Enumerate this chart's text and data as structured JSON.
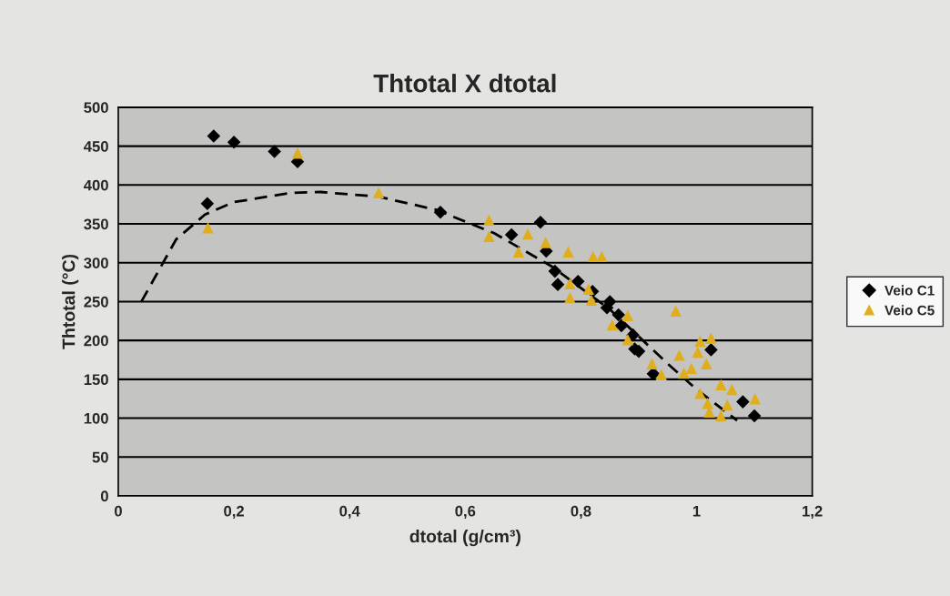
{
  "chart_data": {
    "type": "scatter",
    "title": "Thtotal X dtotal",
    "xlabel": "dtotal (g/cm³)",
    "ylabel": "Thtotal (°C)",
    "xlim": [
      0,
      1.2
    ],
    "xticks": [
      0,
      {
        "value": 0.2,
        "label": "0,2"
      },
      {
        "value": 0.4,
        "label": "0,4"
      },
      {
        "value": 0.6,
        "label": "0,6"
      },
      {
        "value": 0.8,
        "label": "0,8"
      },
      1,
      {
        "value": 1.2,
        "label": "1,2"
      }
    ],
    "ylim": [
      0,
      500
    ],
    "yticks": [
      0,
      50,
      100,
      150,
      200,
      250,
      300,
      350,
      400,
      450,
      500
    ],
    "grid": "y",
    "legend": "right",
    "series": [
      {
        "name": "Veio C1",
        "color": "#000000",
        "marker": "diamond",
        "x": [
          0.165,
          0.2,
          0.27,
          0.31,
          0.154,
          0.557,
          0.68,
          0.73,
          0.74,
          0.755,
          0.76,
          0.795,
          0.82,
          0.845,
          0.85,
          0.865,
          0.87,
          0.89,
          0.893,
          0.9,
          0.925,
          1.025,
          1.08,
          1.1
        ],
        "values": [
          463,
          455,
          443,
          430,
          376,
          365,
          336,
          352,
          315,
          289,
          272,
          276,
          263,
          242,
          250,
          233,
          219,
          207,
          189,
          186,
          157,
          188,
          121,
          103
        ]
      },
      {
        "name": "Veio C5",
        "color": "#e0ae1c",
        "marker": "triangle",
        "x": [
          0.155,
          0.31,
          0.45,
          0.641,
          0.641,
          0.708,
          0.692,
          0.739,
          0.778,
          0.821,
          0.836,
          0.781,
          0.813,
          0.781,
          0.818,
          0.854,
          0.881,
          0.881,
          0.964,
          1.006,
          1.025,
          0.923,
          0.939,
          0.97,
          0.978,
          0.991,
          1.002,
          1.017,
          1.042,
          1.061,
          1.006,
          1.019,
          1.022,
          1.042,
          1.053,
          1.101
        ],
        "values": [
          345,
          441,
          390,
          355,
          334,
          337,
          314,
          326,
          314,
          308,
          308,
          273,
          266,
          255,
          252,
          220,
          232,
          201,
          238,
          199,
          203,
          170,
          156,
          181,
          158,
          164,
          185,
          170,
          143,
          137,
          132,
          119,
          108,
          103,
          117,
          125
        ]
      },
      {
        "type": "line",
        "color": "#000000",
        "line_style": "dashed",
        "marker": "none",
        "x": [
          0.04,
          0.1,
          0.15,
          0.2,
          0.3,
          0.35,
          0.45,
          0.55,
          0.65,
          0.75,
          0.85,
          0.95,
          1.0,
          1.07
        ],
        "values": [
          250,
          330,
          362,
          378,
          390,
          391,
          385,
          368,
          338,
          295,
          240,
          170,
          137,
          97
        ]
      }
    ]
  }
}
